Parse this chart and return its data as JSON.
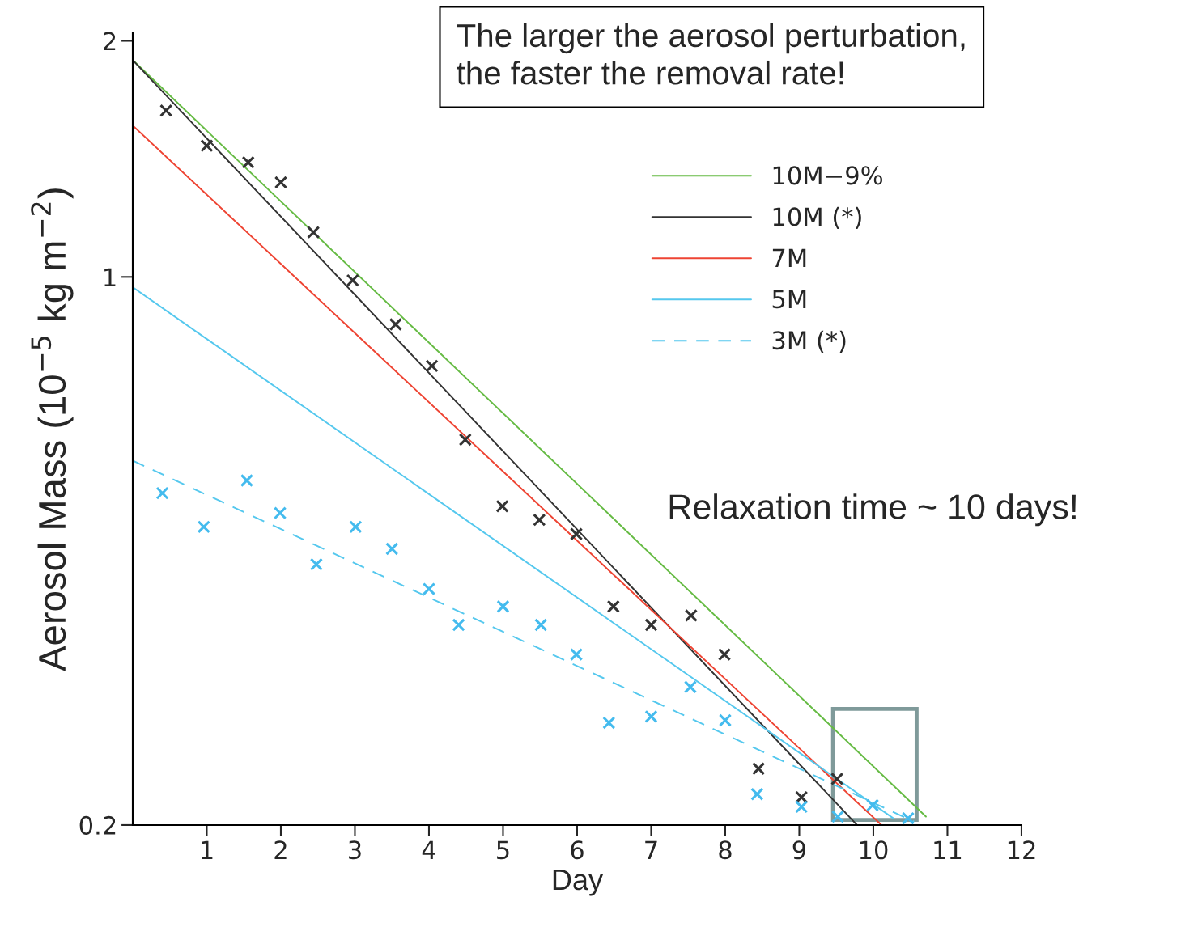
{
  "chart_data": {
    "type": "line",
    "xlabel": "Day",
    "ylabel": "Aerosol Mass (10$^{−5}$ kg m$^{−2}$)",
    "annotations": [
      "The larger the aerosol perturbation,\nthe faster the removal rate!",
      "Relaxation time ~ 10 days!"
    ],
    "log": "y",
    "xlim": [
      0,
      12
    ],
    "ylim": [
      0.2,
      2.05
    ],
    "xticks": [
      1,
      2,
      3,
      4,
      5,
      6,
      7,
      8,
      9,
      10,
      11,
      12
    ],
    "yticks": [
      0.2,
      1,
      2
    ],
    "grid": false,
    "legend": "top right",
    "series": [
      {
        "name": "10M−9%",
        "color": "#66bb44",
        "line_style": "solid",
        "x": [
          0,
          10.71
        ],
        "values": [
          1.89,
          0.205
        ]
      },
      {
        "name": "10M (*)",
        "color": "#333333",
        "line_style": "solid",
        "x": [
          0,
          9.78
        ],
        "values": [
          1.89,
          0.2
        ]
      },
      {
        "name": "7M",
        "color": "#ee4433",
        "line_style": "solid",
        "x": [
          0,
          10.11
        ],
        "values": [
          1.56,
          0.2
        ]
      },
      {
        "name": "5M",
        "color": "#55c8ee",
        "line_style": "solid",
        "x": [
          0,
          10.27
        ],
        "values": [
          0.97,
          0.204
        ]
      },
      {
        "name": "3M (*)",
        "color": "#55c8ee",
        "line_style": "dashed",
        "x": [
          0,
          10.55
        ],
        "values": [
          0.583,
          0.202
        ]
      },
      {
        "type": "scatter",
        "color": "#333333",
        "marker": "cross",
        "x": [
          0.45,
          1.0,
          1.56,
          2.0,
          2.44,
          2.97,
          3.55,
          4.04,
          4.49,
          4.99,
          5.49,
          5.99,
          6.49,
          7.0,
          7.54,
          7.99,
          8.45,
          9.03,
          9.51
        ],
        "values": [
          1.63,
          1.47,
          1.4,
          1.32,
          1.14,
          0.99,
          0.87,
          0.77,
          0.62,
          0.51,
          0.49,
          0.47,
          0.38,
          0.36,
          0.37,
          0.33,
          0.236,
          0.217,
          0.229
        ]
      },
      {
        "type": "scatter",
        "color": "#44bbee",
        "marker": "cross",
        "x": [
          0.4,
          0.96,
          1.54,
          1.99,
          2.48,
          3.01,
          3.5,
          4.0,
          4.4,
          5.0,
          5.51,
          5.99,
          6.43,
          7.0,
          7.53,
          8.0,
          8.43,
          9.03,
          9.52,
          9.99,
          10.47
        ],
        "values": [
          0.53,
          0.48,
          0.55,
          0.5,
          0.43,
          0.48,
          0.45,
          0.4,
          0.36,
          0.38,
          0.36,
          0.33,
          0.27,
          0.275,
          0.3,
          0.272,
          0.219,
          0.211,
          0.205,
          0.212,
          0.204
        ]
      }
    ]
  }
}
